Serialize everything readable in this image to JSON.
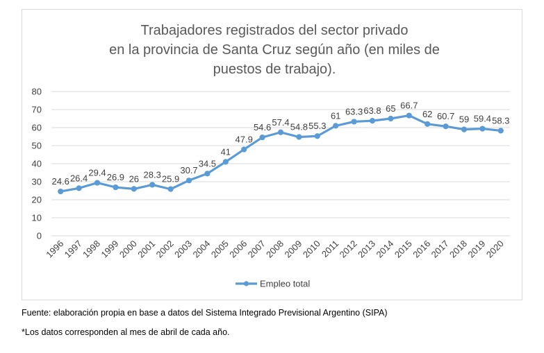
{
  "chart_data": {
    "type": "line",
    "title": [
      "Trabajadores registrados del sector privado",
      "en la provincia de Santa Cruz según año (en miles de",
      "puestos de trabajo)."
    ],
    "categories": [
      "1996",
      "1997",
      "1998",
      "1999",
      "2000",
      "2001",
      "2002",
      "2003",
      "2004",
      "2005",
      "2006",
      "2007",
      "2008",
      "2009",
      "2010",
      "2011",
      "2012",
      "2013",
      "2014",
      "2015",
      "2016",
      "2017",
      "2018",
      "2019",
      "2020"
    ],
    "series": [
      {
        "name": "Empleo total",
        "values": [
          24.6,
          26.4,
          29.4,
          26.9,
          26,
          28.3,
          25.9,
          30.7,
          34.5,
          41,
          47.9,
          54.6,
          57.4,
          54.8,
          55.3,
          61,
          63.3,
          63.8,
          65,
          66.7,
          62,
          60.7,
          59,
          59.4,
          58.3
        ]
      }
    ],
    "ylim": [
      0,
      80
    ],
    "yticks": [
      0,
      10,
      20,
      30,
      40,
      50,
      60,
      70,
      80
    ],
    "grid": true,
    "legend": "bottom",
    "colors": {
      "line": "#5b9bd5",
      "grid": "#d9d9d9",
      "text": "#404040",
      "title": "#595959"
    }
  },
  "notes": {
    "source": "Fuente: elaboración propia en base a datos del Sistema Integrado Previsional Argentino (SIPA)",
    "footnote": "*Los datos corresponden al mes de abril de cada año."
  }
}
